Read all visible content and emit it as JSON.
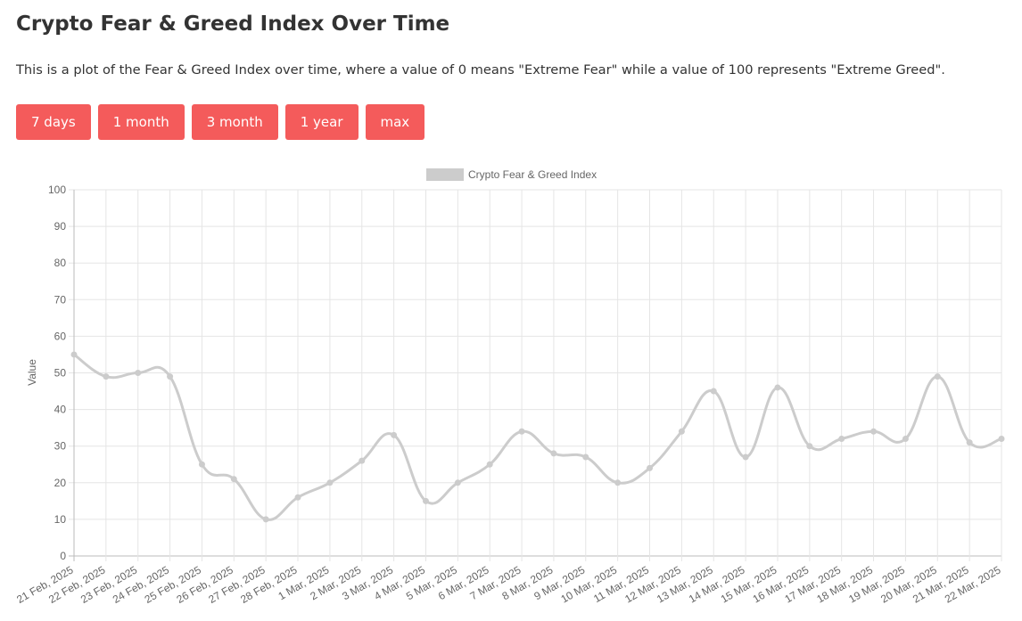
{
  "page": {
    "title": "Crypto Fear & Greed Index Over Time",
    "description": "This is a plot of the Fear & Greed Index over time, where a value of 0 means \"Extreme Fear\" while a value of 100 represents \"Extreme Greed\"."
  },
  "range_buttons": [
    {
      "label": "7 days"
    },
    {
      "label": "1 month"
    },
    {
      "label": "3 month"
    },
    {
      "label": "1 year"
    },
    {
      "label": "max"
    }
  ],
  "colors": {
    "button_bg": "#f45b5b",
    "button_text": "#ffffff",
    "series_line": "#cccccc",
    "grid": "#e5e5e5",
    "axis_text": "#666666"
  },
  "chart_data": {
    "type": "line",
    "title": "",
    "xlabel": "",
    "ylabel": "Value",
    "ylim": [
      0,
      100
    ],
    "yticks": [
      0,
      10,
      20,
      30,
      40,
      50,
      60,
      70,
      80,
      90,
      100
    ],
    "grid": true,
    "legend_position": "top-center",
    "categories": [
      "21 Feb, 2025",
      "22 Feb, 2025",
      "23 Feb, 2025",
      "24 Feb, 2025",
      "25 Feb, 2025",
      "26 Feb, 2025",
      "27 Feb, 2025",
      "28 Feb, 2025",
      "1 Mar, 2025",
      "2 Mar, 2025",
      "3 Mar, 2025",
      "4 Mar, 2025",
      "5 Mar, 2025",
      "6 Mar, 2025",
      "7 Mar, 2025",
      "8 Mar, 2025",
      "9 Mar, 2025",
      "10 Mar, 2025",
      "11 Mar, 2025",
      "12 Mar, 2025",
      "13 Mar, 2025",
      "14 Mar, 2025",
      "15 Mar, 2025",
      "16 Mar, 2025",
      "17 Mar, 2025",
      "18 Mar, 2025",
      "19 Mar, 2025",
      "20 Mar, 2025",
      "21 Mar, 2025",
      "22 Mar, 2025"
    ],
    "series": [
      {
        "name": "Crypto Fear & Greed Index",
        "color": "#cccccc",
        "values": [
          55,
          49,
          50,
          49,
          25,
          21,
          10,
          16,
          20,
          26,
          33,
          15,
          20,
          25,
          34,
          28,
          27,
          20,
          24,
          34,
          45,
          27,
          46,
          30,
          32,
          34,
          32,
          49,
          31,
          32
        ]
      }
    ]
  }
}
